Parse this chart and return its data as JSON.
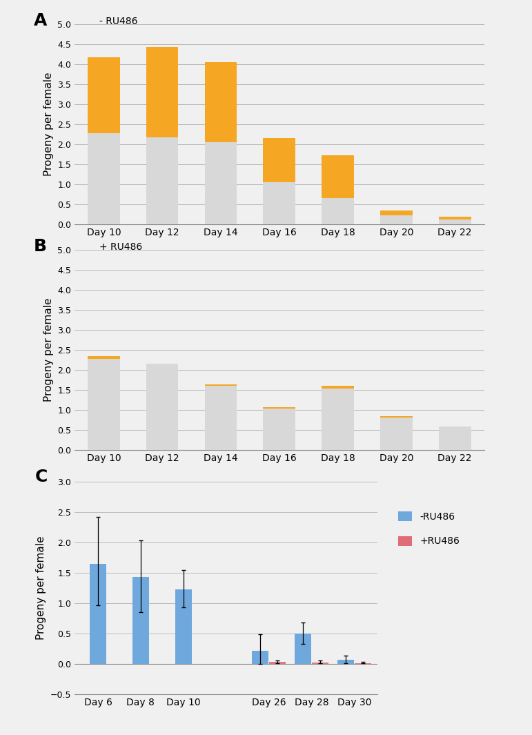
{
  "panel_A": {
    "label": "A",
    "subtitle": "- RU486",
    "categories": [
      "Day 10",
      "Day 12",
      "Day 14",
      "Day 16",
      "Day 18",
      "Day 20",
      "Day 22"
    ],
    "gray_values": [
      2.28,
      2.18,
      2.05,
      1.05,
      0.65,
      0.22,
      0.12
    ],
    "orange_values": [
      1.9,
      2.25,
      2.0,
      1.1,
      1.08,
      0.13,
      0.06
    ],
    "gray_color": "#d8d8d8",
    "orange_color": "#f5a623",
    "ylim": [
      0,
      5
    ],
    "yticks": [
      0,
      0.5,
      1.0,
      1.5,
      2.0,
      2.5,
      3.0,
      3.5,
      4.0,
      4.5,
      5.0
    ],
    "ylabel": "Progeny per female"
  },
  "panel_B": {
    "label": "B",
    "subtitle": "+ RU486",
    "categories": [
      "Day 10",
      "Day 12",
      "Day 14",
      "Day 16",
      "Day 18",
      "Day 20",
      "Day 22"
    ],
    "gray_values": [
      2.28,
      2.15,
      1.6,
      1.04,
      1.53,
      0.8,
      0.59
    ],
    "orange_values": [
      0.07,
      0.0,
      0.04,
      0.02,
      0.07,
      0.04,
      0.0
    ],
    "gray_color": "#d8d8d8",
    "orange_color": "#f5a623",
    "ylim": [
      0,
      5
    ],
    "yticks": [
      0,
      0.5,
      1.0,
      1.5,
      2.0,
      2.5,
      3.0,
      3.5,
      4.0,
      4.5,
      5.0
    ],
    "ylabel": "Progeny per female"
  },
  "panel_C": {
    "label": "C",
    "blue_categories": [
      "Day 6",
      "Day 8",
      "Day 10",
      "Day 26",
      "Day 28",
      "Day 30"
    ],
    "blue_values": [
      1.65,
      1.43,
      1.23,
      0.22,
      0.5,
      0.07
    ],
    "blue_errors_up": [
      0.77,
      0.6,
      0.32,
      0.27,
      0.18,
      0.07
    ],
    "blue_errors_dn": [
      0.68,
      0.58,
      0.3,
      0.22,
      0.17,
      0.06
    ],
    "red_categories": [
      "Day 26",
      "Day 28",
      "Day 30"
    ],
    "red_values": [
      0.04,
      0.03,
      0.02
    ],
    "red_errors_up": [
      0.02,
      0.025,
      0.015
    ],
    "red_errors_dn": [
      0.02,
      0.02,
      0.01
    ],
    "blue_color": "#6fa8dc",
    "red_color": "#e06c75",
    "ylim": [
      -0.5,
      3.0
    ],
    "yticks": [
      -0.5,
      0,
      0.5,
      1.0,
      1.5,
      2.0,
      2.5,
      3.0
    ],
    "ylabel": "Progeny per female",
    "legend_minus": "-RU486",
    "legend_plus": "+RU486"
  },
  "bg_color": "#f0f0f0"
}
